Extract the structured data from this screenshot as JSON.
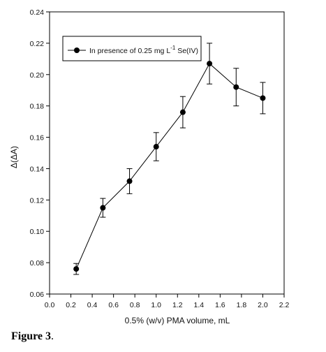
{
  "caption": {
    "label": "Figure 3",
    "punct": "."
  },
  "chart_data": {
    "type": "line",
    "xlabel": "0.5% (w/v) PMA volume, mL",
    "ylabel": "Δ(ΔA)",
    "xlim": [
      0.0,
      2.2
    ],
    "ylim": [
      0.06,
      0.24
    ],
    "x_ticks": [
      "0.0",
      "0.2",
      "0.4",
      "0.6",
      "0.8",
      "1.0",
      "1.2",
      "1.4",
      "1.6",
      "1.8",
      "2.0",
      "2.2"
    ],
    "y_ticks": [
      "0.06",
      "0.08",
      "0.10",
      "0.12",
      "0.14",
      "0.16",
      "0.18",
      "0.20",
      "0.22",
      "0.24"
    ],
    "grid": false,
    "legend_position": "top-left",
    "series": [
      {
        "legend_prefix": "In presence of 0.25 mg L",
        "legend_sup": "-1",
        "legend_suffix": " Se(IV)",
        "x": [
          0.25,
          0.5,
          0.75,
          1.0,
          1.25,
          1.5,
          1.75,
          2.0
        ],
        "y": [
          0.076,
          0.115,
          0.132,
          0.154,
          0.176,
          0.207,
          0.192,
          0.185
        ],
        "error": [
          0.0035,
          0.006,
          0.008,
          0.009,
          0.01,
          0.013,
          0.012,
          0.01
        ]
      }
    ]
  }
}
